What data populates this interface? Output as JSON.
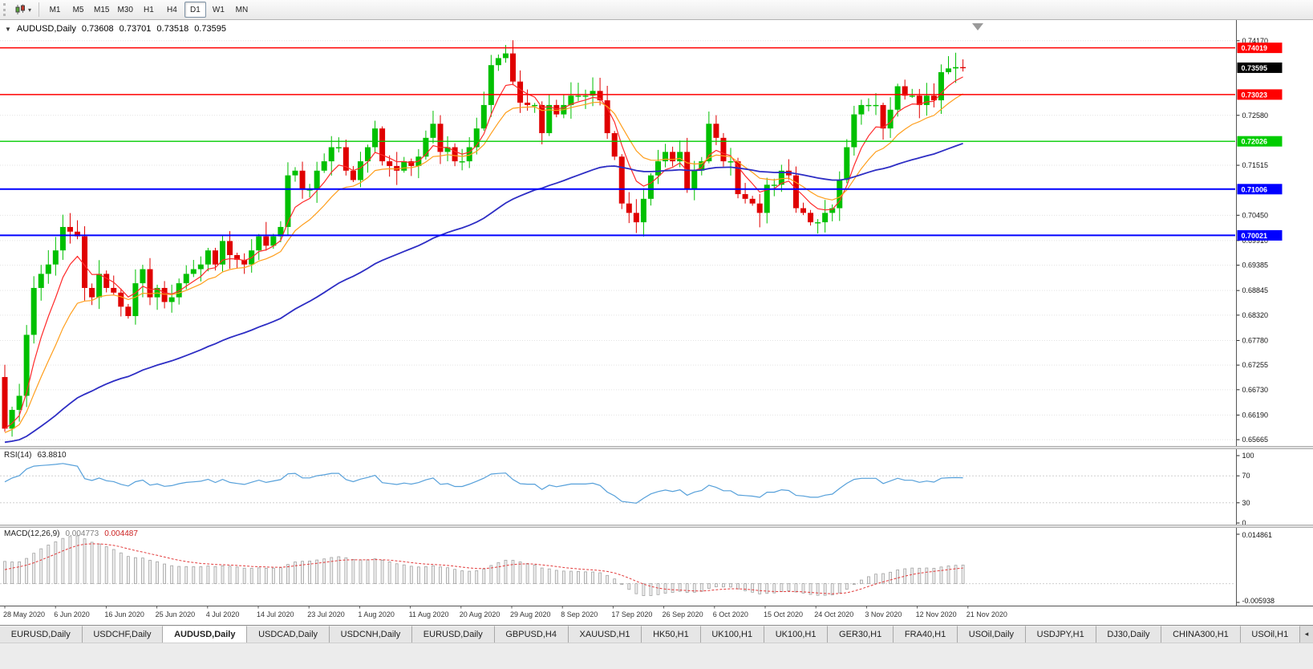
{
  "toolbar": {
    "timeframes": [
      "M1",
      "M5",
      "M15",
      "M30",
      "H1",
      "H4",
      "D1",
      "W1",
      "MN"
    ],
    "active_timeframe": "D1"
  },
  "chart": {
    "symbol": "AUDUSD,Daily",
    "open": "0.73608",
    "high": "0.73701",
    "low": "0.73518",
    "close": "0.73595"
  },
  "price_axis": {
    "ticks": [
      "0.74170",
      "0.72580",
      "0.71515",
      "0.70450",
      "0.69910",
      "0.69385",
      "0.68845",
      "0.68320",
      "0.67780",
      "0.67255",
      "0.66730",
      "0.66190",
      "0.65665"
    ],
    "current_price": "0.73595",
    "current_price_badge_color": "#000000"
  },
  "levels": [
    {
      "label": "0.74019",
      "price": 0.74019,
      "color": "#ff0000",
      "width": 1.4
    },
    {
      "label": "0.73023",
      "price": 0.73023,
      "color": "#ff0000",
      "width": 1.4
    },
    {
      "label": "0.72026",
      "price": 0.72026,
      "color": "#00cc00",
      "width": 1.4
    },
    {
      "label": "0.71006",
      "price": 0.71006,
      "color": "#0000ff",
      "width": 2
    },
    {
      "label": "0.70021",
      "price": 0.70021,
      "color": "#0000ff",
      "width": 2
    }
  ],
  "rsi_panel": {
    "name": "RSI(14)",
    "value": "63.8810",
    "axis_ticks": [
      "100",
      "70",
      "30",
      "0"
    ],
    "level_high": 70,
    "level_low": 30,
    "line_color": "#56a0da"
  },
  "macd_panel": {
    "name": "MACD(12,26,9)",
    "value": "0.004773",
    "signal_value": "0.004487",
    "axis_max_label": "0.014861",
    "axis_min_label": "-0.005938",
    "axis_max": 0.014861,
    "axis_min": -0.005938
  },
  "date_axis": {
    "labels": [
      "28 May 2020",
      "6 Jun 2020",
      "16 Jun 2020",
      "25 Jun 2020",
      "4 Jul 2020",
      "14 Jul 2020",
      "23 Jul 2020",
      "1 Aug 2020",
      "11 Aug 2020",
      "20 Aug 2020",
      "29 Aug 2020",
      "8 Sep 2020",
      "17 Sep 2020",
      "26 Sep 2020",
      "6 Oct 2020",
      "15 Oct 2020",
      "24 Oct 2020",
      "3 Nov 2020",
      "12 Nov 2020",
      "21 Nov 2020"
    ]
  },
  "tabs": {
    "items": [
      "EURUSD,Daily",
      "USDCHF,Daily",
      "AUDUSD,Daily",
      "USDCAD,Daily",
      "USDCNH,Daily",
      "EURUSD,Daily",
      "GBPUSD,H4",
      "XAUUSD,H1",
      "HK50,H1",
      "UK100,H1",
      "UK100,H1",
      "GER30,H1",
      "FRA40,H1",
      "USOil,Daily",
      "USDJPY,H1",
      "DJ30,Daily",
      "CHINA300,H1",
      "USOil,H1"
    ],
    "active_index": 2,
    "scroll_icon": "◂"
  },
  "chart_data": {
    "type": "candlestick",
    "symbol": "AUDUSD",
    "timeframe": "Daily",
    "x_labels": [
      "28 May 2020",
      "6 Jun 2020",
      "16 Jun 2020",
      "25 Jun 2020",
      "4 Jul 2020",
      "14 Jul 2020",
      "23 Jul 2020",
      "1 Aug 2020",
      "11 Aug 2020",
      "20 Aug 2020",
      "29 Aug 2020",
      "8 Sep 2020",
      "17 Sep 2020",
      "26 Sep 2020",
      "6 Oct 2020",
      "15 Oct 2020",
      "24 Oct 2020",
      "3 Nov 2020",
      "12 Nov 2020",
      "21 Nov 2020"
    ],
    "price_axis_range": [
      0.6553,
      0.7456
    ],
    "first_open": 0.67,
    "closes": [
      0.659,
      0.663,
      0.666,
      0.679,
      0.689,
      0.692,
      0.694,
      0.697,
      0.702,
      0.701,
      0.7,
      0.689,
      0.687,
      0.692,
      0.689,
      0.688,
      0.685,
      0.683,
      0.69,
      0.693,
      0.687,
      0.689,
      0.686,
      0.687,
      0.69,
      0.692,
      0.693,
      0.694,
      0.697,
      0.694,
      0.699,
      0.696,
      0.695,
      0.694,
      0.697,
      0.7,
      0.698,
      0.7,
      0.702,
      0.713,
      0.714,
      0.71,
      0.71,
      0.714,
      0.716,
      0.719,
      0.719,
      0.714,
      0.712,
      0.716,
      0.719,
      0.723,
      0.716,
      0.715,
      0.714,
      0.716,
      0.715,
      0.717,
      0.721,
      0.724,
      0.718,
      0.719,
      0.716,
      0.716,
      0.719,
      0.723,
      0.728,
      0.7365,
      0.738,
      0.739,
      0.733,
      0.7285,
      0.728,
      0.728,
      0.722,
      0.728,
      0.726,
      0.728,
      0.73,
      0.73,
      0.73,
      0.731,
      0.729,
      0.722,
      0.717,
      0.707,
      0.705,
      0.703,
      0.708,
      0.713,
      0.716,
      0.718,
      0.716,
      0.718,
      0.71,
      0.714,
      0.716,
      0.724,
      0.721,
      0.716,
      0.716,
      0.709,
      0.708,
      0.707,
      0.705,
      0.711,
      0.711,
      0.714,
      0.713,
      0.706,
      0.705,
      0.703,
      0.703,
      0.705,
      0.706,
      0.712,
      0.719,
      0.726,
      0.728,
      0.728,
      0.728,
      0.723,
      0.727,
      0.732,
      0.73,
      0.73,
      0.728,
      0.73,
      0.729,
      0.735,
      0.7358,
      0.73608,
      0.73595
    ],
    "colors": {
      "up": "#00c000",
      "down": "#e00000"
    },
    "moving_averages": [
      {
        "period": 6,
        "color": "#ff2a2a",
        "width": 1.2,
        "seed": null
      },
      {
        "period": 13,
        "color": "#ff9e1b",
        "width": 1.2,
        "seed": 0.658
      },
      {
        "period": 60,
        "color": "#2d2dc4",
        "width": 1.8,
        "seed": 0.656
      }
    ],
    "rsi": {
      "period": 14,
      "current": 63.881,
      "seed_gain": 0.0011,
      "seed_loss": 0.0007
    },
    "macd": {
      "fast": 12,
      "slow": 26,
      "signal_period": 9,
      "current": 0.004773,
      "current_signal": 0.004487,
      "slow_seed_offset": 0.007,
      "signal_seed_offset": 0.003
    }
  }
}
